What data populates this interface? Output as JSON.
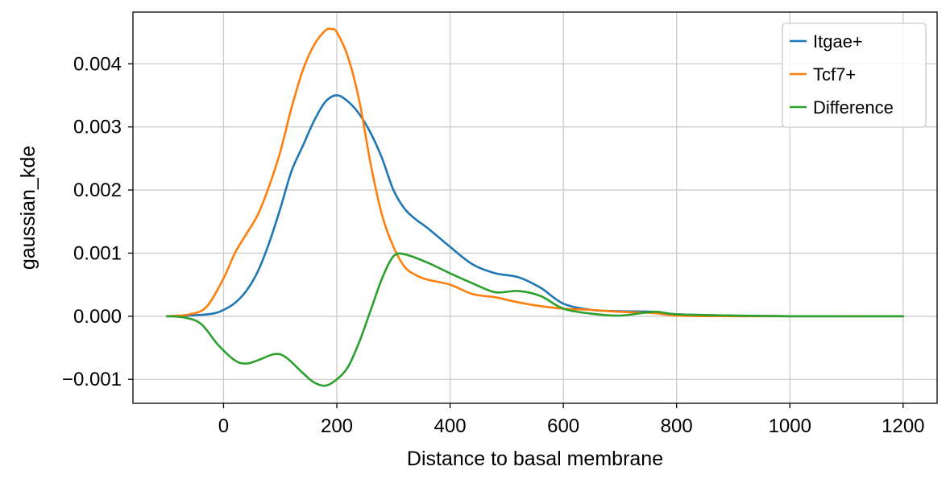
{
  "chart_data": {
    "type": "line",
    "xlabel": "Distance to basal membrane",
    "ylabel": "gaussian_kde",
    "xlim": [
      -160,
      1260
    ],
    "ylim": [
      -0.00138,
      0.00482
    ],
    "xticks": [
      {
        "value": 0,
        "label": "0"
      },
      {
        "value": 200,
        "label": "200"
      },
      {
        "value": 400,
        "label": "400"
      },
      {
        "value": 600,
        "label": "600"
      },
      {
        "value": 800,
        "label": "800"
      },
      {
        "value": 1000,
        "label": "1000"
      },
      {
        "value": 1200,
        "label": "1200"
      }
    ],
    "yticks": [
      {
        "value": -0.001,
        "label": "−0.001"
      },
      {
        "value": 0.0,
        "label": "0.000"
      },
      {
        "value": 0.001,
        "label": "0.001"
      },
      {
        "value": 0.002,
        "label": "0.002"
      },
      {
        "value": 0.003,
        "label": "0.003"
      },
      {
        "value": 0.004,
        "label": "0.004"
      }
    ],
    "grid": true,
    "legend_position": "top-right",
    "series": [
      {
        "name": "Itgae+",
        "color": "#1f77b4",
        "points": [
          [
            -100,
            0.0
          ],
          [
            -60,
            1e-05
          ],
          [
            -20,
            4e-05
          ],
          [
            0,
            0.0001
          ],
          [
            20,
            0.00021
          ],
          [
            40,
            0.0004
          ],
          [
            60,
            0.0007
          ],
          [
            80,
            0.00115
          ],
          [
            100,
            0.0017
          ],
          [
            120,
            0.0023
          ],
          [
            140,
            0.0027
          ],
          [
            160,
            0.0031
          ],
          [
            180,
            0.0034
          ],
          [
            200,
            0.0035
          ],
          [
            220,
            0.0034
          ],
          [
            240,
            0.0032
          ],
          [
            260,
            0.0029
          ],
          [
            280,
            0.0025
          ],
          [
            300,
            0.002
          ],
          [
            320,
            0.0017
          ],
          [
            340,
            0.00153
          ],
          [
            360,
            0.0014
          ],
          [
            400,
            0.0011
          ],
          [
            440,
            0.00082
          ],
          [
            480,
            0.00068
          ],
          [
            520,
            0.00062
          ],
          [
            560,
            0.00045
          ],
          [
            600,
            0.0002
          ],
          [
            650,
            0.0001
          ],
          [
            700,
            8e-05
          ],
          [
            760,
            7e-05
          ],
          [
            800,
            3e-05
          ],
          [
            900,
            1e-05
          ],
          [
            1000,
            0.0
          ],
          [
            1200,
            0.0
          ]
        ]
      },
      {
        "name": "Tcf7+",
        "color": "#ff7f0e",
        "points": [
          [
            -100,
            0.0
          ],
          [
            -60,
            3e-05
          ],
          [
            -30,
            0.00015
          ],
          [
            0,
            0.0006
          ],
          [
            20,
            0.001
          ],
          [
            40,
            0.0013
          ],
          [
            60,
            0.0016
          ],
          [
            80,
            0.00205
          ],
          [
            100,
            0.0026
          ],
          [
            120,
            0.0033
          ],
          [
            140,
            0.0039
          ],
          [
            160,
            0.0043
          ],
          [
            180,
            0.00453
          ],
          [
            190,
            0.00455
          ],
          [
            200,
            0.0045
          ],
          [
            220,
            0.0041
          ],
          [
            240,
            0.0034
          ],
          [
            260,
            0.0024
          ],
          [
            280,
            0.0016
          ],
          [
            300,
            0.0011
          ],
          [
            320,
            0.00078
          ],
          [
            340,
            0.00065
          ],
          [
            360,
            0.00058
          ],
          [
            400,
            0.0005
          ],
          [
            440,
            0.00035
          ],
          [
            480,
            0.0003
          ],
          [
            520,
            0.00022
          ],
          [
            560,
            0.00016
          ],
          [
            600,
            0.00012
          ],
          [
            650,
            0.0001
          ],
          [
            700,
            7e-05
          ],
          [
            760,
            5e-05
          ],
          [
            800,
            1e-05
          ],
          [
            900,
            0.0
          ],
          [
            1200,
            0.0
          ]
        ]
      },
      {
        "name": "Difference",
        "color": "#2ca02c",
        "points": [
          [
            -100,
            0.0
          ],
          [
            -70,
            -2e-05
          ],
          [
            -40,
            -0.00012
          ],
          [
            -10,
            -0.00045
          ],
          [
            20,
            -0.0007
          ],
          [
            40,
            -0.00075
          ],
          [
            60,
            -0.0007
          ],
          [
            90,
            -0.0006
          ],
          [
            110,
            -0.00065
          ],
          [
            140,
            -0.0009
          ],
          [
            160,
            -0.00105
          ],
          [
            180,
            -0.0011
          ],
          [
            200,
            -0.001
          ],
          [
            220,
            -0.0008
          ],
          [
            240,
            -0.0004
          ],
          [
            260,
            0.0001
          ],
          [
            280,
            0.0006
          ],
          [
            300,
            0.00095
          ],
          [
            320,
            0.00098
          ],
          [
            360,
            0.00085
          ],
          [
            400,
            0.00068
          ],
          [
            440,
            0.00052
          ],
          [
            480,
            0.00038
          ],
          [
            520,
            0.0004
          ],
          [
            560,
            0.00032
          ],
          [
            600,
            0.00012
          ],
          [
            650,
            4e-05
          ],
          [
            700,
            1e-05
          ],
          [
            760,
            7e-05
          ],
          [
            800,
            3e-05
          ],
          [
            900,
            1e-05
          ],
          [
            1000,
            0.0
          ],
          [
            1200,
            0.0
          ]
        ]
      }
    ]
  }
}
